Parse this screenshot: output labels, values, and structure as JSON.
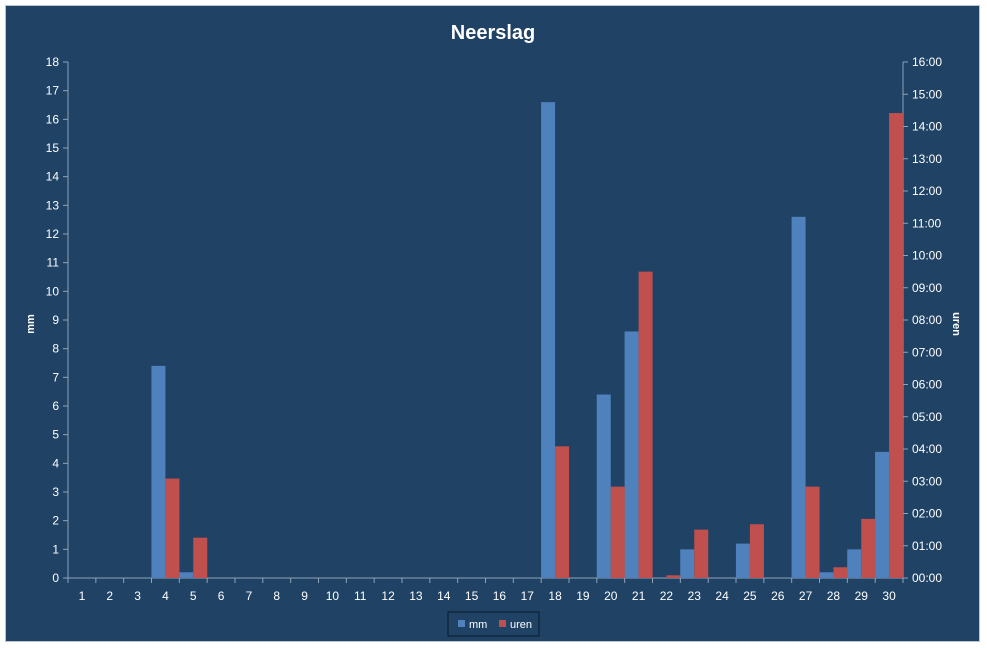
{
  "chart_data": {
    "type": "bar",
    "title": "Neerslag",
    "categories": [
      "1",
      "2",
      "3",
      "4",
      "5",
      "6",
      "7",
      "8",
      "9",
      "10",
      "11",
      "12",
      "13",
      "14",
      "15",
      "16",
      "17",
      "18",
      "19",
      "20",
      "21",
      "22",
      "23",
      "24",
      "25",
      "26",
      "27",
      "28",
      "29",
      "30"
    ],
    "series": [
      {
        "name": "mm",
        "axis": "left",
        "color": "#4f81bd",
        "values": [
          0,
          0,
          0,
          7.4,
          0.2,
          0,
          0,
          0,
          0,
          0,
          0,
          0,
          0,
          0,
          0,
          0,
          0,
          16.6,
          0,
          6.4,
          8.6,
          0,
          1.0,
          0,
          1.2,
          0,
          12.6,
          0.2,
          1.0,
          4.4
        ]
      },
      {
        "name": "uren",
        "axis": "right",
        "color": "#c0504d",
        "values": [
          0,
          0,
          0,
          3.083,
          1.25,
          0,
          0,
          0,
          0,
          0,
          0,
          0,
          0,
          0,
          0,
          0,
          0,
          4.083,
          0,
          2.833,
          9.5,
          0.083,
          1.5,
          0,
          1.667,
          0,
          2.833,
          0.333,
          1.833,
          14.417
        ]
      }
    ],
    "y_left": {
      "label": "mm",
      "range": [
        0,
        18
      ],
      "ticks": [
        "0",
        "1",
        "2",
        "3",
        "4",
        "5",
        "6",
        "7",
        "8",
        "9",
        "10",
        "11",
        "12",
        "13",
        "14",
        "15",
        "16",
        "17",
        "18"
      ]
    },
    "y_right": {
      "label": "uren",
      "range": [
        0,
        16
      ],
      "ticks": [
        "00:00",
        "01:00",
        "02:00",
        "03:00",
        "04:00",
        "05:00",
        "06:00",
        "07:00",
        "08:00",
        "09:00",
        "10:00",
        "11:00",
        "12:00",
        "13:00",
        "14:00",
        "15:00",
        "16:00"
      ]
    },
    "grid": false,
    "legend": "bottom",
    "colors": {
      "background": "#1f4265",
      "axis": "#8fa3b8",
      "text": "#ffffff"
    }
  }
}
